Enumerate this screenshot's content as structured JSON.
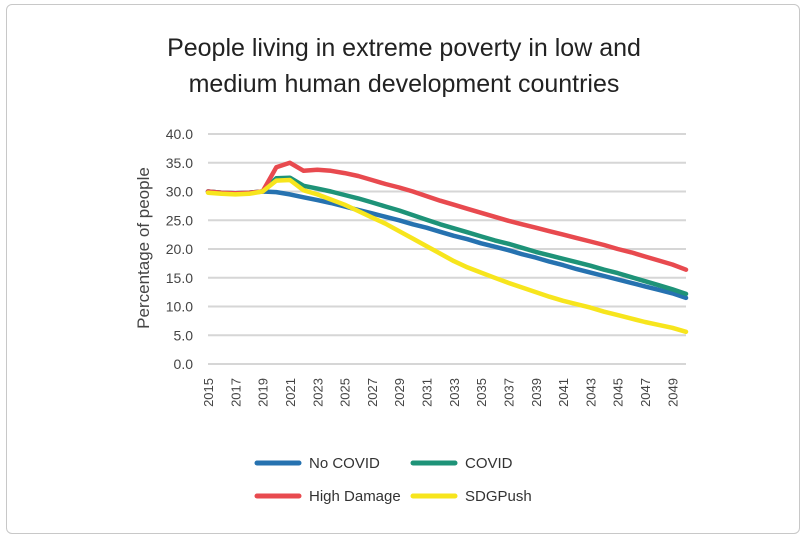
{
  "chart_data": {
    "type": "line",
    "title_line1": "People living in extreme poverty in low and",
    "title_line2": "medium human development countries",
    "ylabel": "Percentage of people",
    "xlabel": "",
    "ylim": [
      0,
      40
    ],
    "yticks": [
      "0.0",
      "5.0",
      "10.0",
      "15.0",
      "20.0",
      "25.0",
      "30.0",
      "35.0",
      "40.0"
    ],
    "xticks": [
      "2015",
      "2017",
      "2019",
      "2021",
      "2023",
      "2025",
      "2027",
      "2029",
      "2031",
      "2033",
      "2035",
      "2037",
      "2039",
      "2041",
      "2043",
      "2045",
      "2047",
      "2049"
    ],
    "grid": "horizontal",
    "legend_position": "bottom",
    "x": [
      2015,
      2016,
      2017,
      2018,
      2019,
      2020,
      2021,
      2022,
      2023,
      2024,
      2025,
      2026,
      2027,
      2028,
      2029,
      2030,
      2031,
      2032,
      2033,
      2034,
      2035,
      2036,
      2037,
      2038,
      2039,
      2040,
      2041,
      2042,
      2043,
      2044,
      2045,
      2046,
      2047,
      2048,
      2049,
      2050
    ],
    "series": [
      {
        "name": "No COVID",
        "color": "#2672b0",
        "values": [
          30.0,
          29.8,
          29.7,
          29.8,
          30.0,
          29.9,
          29.5,
          29.0,
          28.5,
          28.0,
          27.4,
          26.8,
          26.2,
          25.6,
          25.0,
          24.3,
          23.7,
          23.0,
          22.3,
          21.7,
          21.0,
          20.4,
          19.8,
          19.1,
          18.5,
          17.8,
          17.2,
          16.5,
          15.9,
          15.3,
          14.7,
          14.1,
          13.5,
          12.9,
          12.3,
          11.5
        ]
      },
      {
        "name": "COVID",
        "color": "#1e9378",
        "values": [
          30.0,
          29.8,
          29.7,
          29.8,
          30.0,
          32.3,
          32.4,
          31.0,
          30.5,
          30.0,
          29.4,
          28.8,
          28.1,
          27.4,
          26.7,
          25.9,
          25.1,
          24.3,
          23.6,
          22.9,
          22.2,
          21.5,
          20.9,
          20.2,
          19.5,
          18.9,
          18.3,
          17.7,
          17.1,
          16.4,
          15.8,
          15.1,
          14.4,
          13.7,
          13.0,
          12.2
        ]
      },
      {
        "name": "High Damage",
        "color": "#e84a4f",
        "values": [
          30.0,
          29.8,
          29.7,
          29.8,
          30.0,
          34.2,
          35.0,
          33.6,
          33.8,
          33.6,
          33.2,
          32.7,
          32.0,
          31.3,
          30.7,
          30.0,
          29.2,
          28.4,
          27.7,
          27.0,
          26.3,
          25.6,
          24.9,
          24.3,
          23.7,
          23.1,
          22.5,
          21.9,
          21.3,
          20.7,
          20.0,
          19.4,
          18.7,
          18.0,
          17.3,
          16.4
        ]
      },
      {
        "name": "SDGPush",
        "color": "#f7e51d",
        "values": [
          29.8,
          29.6,
          29.5,
          29.6,
          30.0,
          31.9,
          32.0,
          30.2,
          29.5,
          28.6,
          27.7,
          26.6,
          25.5,
          24.4,
          23.1,
          21.8,
          20.5,
          19.2,
          17.9,
          16.8,
          15.9,
          15.0,
          14.1,
          13.3,
          12.5,
          11.7,
          11.0,
          10.4,
          9.8,
          9.1,
          8.5,
          7.9,
          7.3,
          6.8,
          6.3,
          5.6
        ]
      }
    ]
  }
}
